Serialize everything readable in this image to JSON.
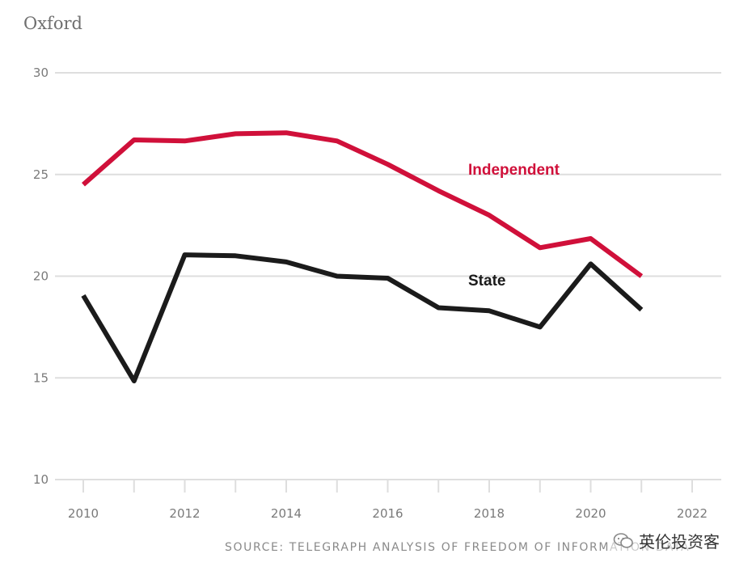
{
  "title": "Oxford",
  "source": "SOURCE: TELEGRAPH ANALYSIS OF FREEDOM OF INFORMATION DATA",
  "watermark": "英伦投资客",
  "colors": {
    "independent": "#d0103a",
    "state": "#1b1b1b",
    "grid": "#dedede",
    "axis_text": "#7a7a7a"
  },
  "chart_data": {
    "type": "line",
    "title": "Oxford",
    "xlabel": "",
    "ylabel": "",
    "xlim": [
      2010,
      2022
    ],
    "ylim": [
      10,
      30
    ],
    "xticks": [
      2010,
      2012,
      2014,
      2016,
      2018,
      2020,
      2022
    ],
    "yticks": [
      10,
      15,
      20,
      25,
      30
    ],
    "grid": true,
    "x": [
      2010,
      2011,
      2012,
      2013,
      2014,
      2015,
      2016,
      2017,
      2018,
      2019,
      2020,
      2021
    ],
    "series": [
      {
        "name": "Independent",
        "values": [
          24.5,
          26.7,
          26.65,
          27.0,
          27.05,
          26.65,
          25.5,
          24.2,
          23.0,
          21.4,
          21.85,
          20.0
        ]
      },
      {
        "name": "State",
        "values": [
          19.05,
          14.85,
          21.05,
          21.0,
          20.7,
          20.0,
          19.9,
          18.45,
          18.3,
          17.5,
          20.6,
          18.35
        ]
      }
    ]
  }
}
